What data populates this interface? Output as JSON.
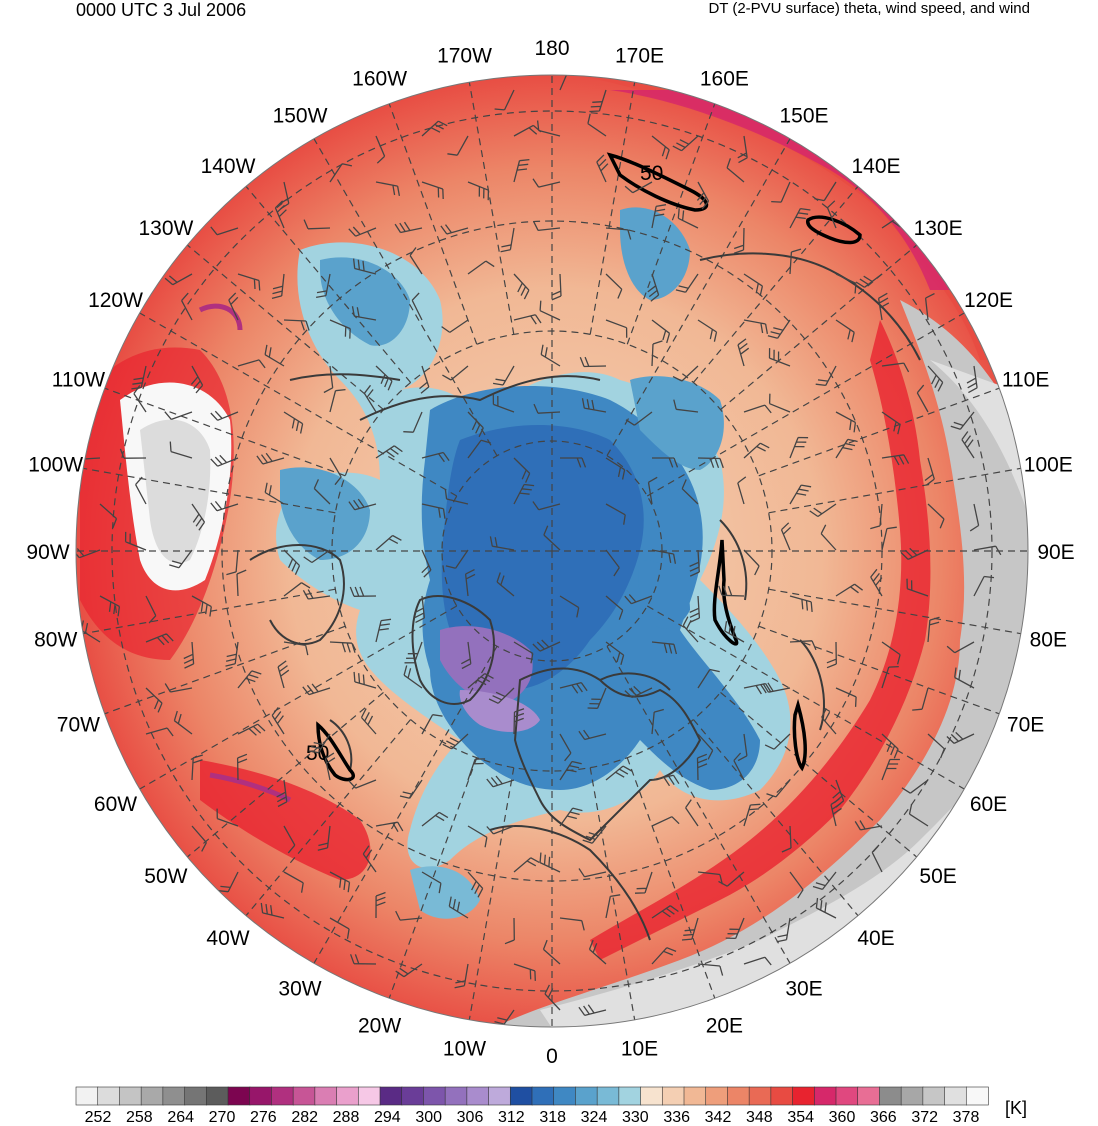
{
  "header": {
    "datetime": "0000 UTC 3 Jul 2006",
    "product": "DT (2-PVU surface) theta, wind speed, and wind"
  },
  "map": {
    "projection": "north-polar-stereographic",
    "longitude_labels": [
      "180",
      "170E",
      "160E",
      "150E",
      "140E",
      "130E",
      "120E",
      "110E",
      "100E",
      "90E",
      "80E",
      "70E",
      "60E",
      "50E",
      "40E",
      "30E",
      "20E",
      "10E",
      "0",
      "10W",
      "20W",
      "30W",
      "40W",
      "50W",
      "60W",
      "70W",
      "80W",
      "90W",
      "100W",
      "110W",
      "120W",
      "130W",
      "140W",
      "150W",
      "160W",
      "170W"
    ],
    "contour_labels": [
      "50",
      "50"
    ],
    "colors": {
      "cold_core": "#2f6fb8",
      "cool": "#8cc9dc",
      "mild": "#f4c7a8",
      "warm": "#ee7a62",
      "hot": "#e8232f",
      "gray_high": "#a7a7a7"
    }
  },
  "colorbar": {
    "unit": "[K]",
    "tick_labels": [
      "252",
      "258",
      "264",
      "270",
      "276",
      "282",
      "288",
      "294",
      "300",
      "306",
      "312",
      "318",
      "324",
      "330",
      "336",
      "342",
      "348",
      "354",
      "360",
      "366",
      "372",
      "378"
    ],
    "bins": [
      "#f2f2f2",
      "#dcdcdc",
      "#c4c4c4",
      "#a9a9a9",
      "#8f8f8f",
      "#757575",
      "#5c5c5c",
      "#7c0550",
      "#97166a",
      "#b0307f",
      "#c75596",
      "#da7eb3",
      "#eaa0cc",
      "#f6c8e6",
      "#5a2b85",
      "#6a3d98",
      "#7d55ab",
      "#9371bd",
      "#a98ccd",
      "#beaadb",
      "#1f4fa2",
      "#2f6fb8",
      "#3f88c3",
      "#5aa2cc",
      "#79bad6",
      "#a2d3e0",
      "#f7e3cf",
      "#f4cfb3",
      "#f1b895",
      "#ee9e7b",
      "#ec8567",
      "#e96a55",
      "#e84b42",
      "#e8232f",
      "#d6286a",
      "#e0487f",
      "#e86e95",
      "#8c8c8c",
      "#a7a7a7",
      "#c6c6c6",
      "#e0e0e0",
      "#f8f8f8"
    ]
  }
}
